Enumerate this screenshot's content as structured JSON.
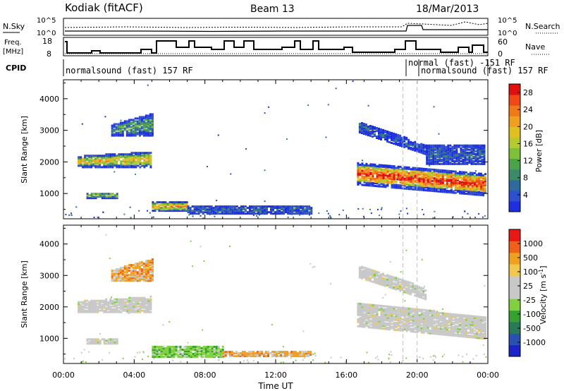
{
  "header": {
    "site": "Kodiak (fitACF)",
    "beam": "Beam 13",
    "date": "18/Mar/2013"
  },
  "meta_panels": {
    "nsky_label": "N.Sky",
    "nsearch_label": "N.Search",
    "noise_ticks": [
      "10^5",
      "10^0"
    ],
    "freq_label": "Freq.",
    "freq_unit": "[MHz]",
    "freq_ticks": [
      "18",
      "8"
    ],
    "nave_label": "Nave",
    "nave_ticks": [
      "60",
      "0"
    ],
    "cpid_label": "CPID",
    "cpid_segments": [
      {
        "text": "normalsound (fast) 157 RF"
      },
      {
        "text": "normal (fast) -151 RF"
      },
      {
        "text": "normalsound (fast) 157 RF"
      }
    ]
  },
  "colors": {
    "power_scale": [
      "#1f2fe0",
      "#2d4fd0",
      "#2f6a9a",
      "#3d8a6a",
      "#4aa24a",
      "#7fc03a",
      "#b8c830",
      "#e0c020",
      "#f0a020",
      "#f07a18",
      "#f04818",
      "#e01010"
    ],
    "velocity_scale": [
      "#1a24c8",
      "#2a50b0",
      "#2a7a58",
      "#36a032",
      "#80d040",
      "#c8c8c8",
      "#c8c8c8",
      "#f0c850",
      "#f0a020",
      "#f06018",
      "#e81818"
    ],
    "grid": "#bdbdbd",
    "dashed_marker": "#c0c0c0"
  },
  "chart_data": [
    {
      "type": "heatmap",
      "name": "power",
      "ylabel": "Slant Range [km]",
      "yticks": [
        1000,
        2000,
        3000,
        4000
      ],
      "ylim": [
        200,
        4600
      ],
      "xlim_hours": [
        0,
        24
      ],
      "colorbar_label": "Power [dB]",
      "colorbar_ticks": [
        4,
        8,
        12,
        16,
        20,
        24,
        28
      ],
      "colorbar_range": [
        0,
        30
      ],
      "bands": [
        {
          "t0": 0.8,
          "t1": 5.0,
          "r0": 1800,
          "r1": 2150,
          "r1_end": 2300,
          "level": 0.45
        },
        {
          "t0": 2.7,
          "t1": 5.0,
          "r0": 2800,
          "r1": 3150,
          "r1_end": 3500,
          "level": 0.25
        },
        {
          "t0": 1.3,
          "t1": 3.0,
          "r0": 820,
          "r1": 1000,
          "level": 0.3
        },
        {
          "t0": 5.0,
          "t1": 7.0,
          "r0": 420,
          "r1": 700,
          "level": 0.5
        },
        {
          "t0": 7.0,
          "t1": 14.0,
          "r0": 330,
          "r1": 560,
          "level": 0.1
        },
        {
          "t0": 16.6,
          "t1": 23.9,
          "r0": 1250,
          "r1": 1950,
          "r0_end": 900,
          "r1_end": 1600,
          "level": 0.65
        },
        {
          "t0": 16.7,
          "t1": 20.5,
          "r0": 2900,
          "r1": 3250,
          "r0_end": 2200,
          "r1_end": 2500,
          "level": 0.1
        },
        {
          "t0": 20.5,
          "t1": 23.8,
          "r0": 1900,
          "r1": 2500,
          "level": 0.1
        }
      ]
    },
    {
      "type": "heatmap",
      "name": "velocity",
      "ylabel": "Slant Range [km]",
      "yticks": [
        1000,
        2000,
        3000,
        4000
      ],
      "ylim": [
        200,
        4600
      ],
      "xlim_hours": [
        0,
        24
      ],
      "xlabel": "Time UT",
      "xticks": [
        "00:00",
        "04:00",
        "08:00",
        "12:00",
        "16:00",
        "20:00",
        "00:00"
      ],
      "colorbar_label": "Velocity [m s",
      "colorbar_label_sup": "-1",
      "colorbar_label_end": "]",
      "colorbar_ticks": [
        1000,
        500,
        100,
        25,
        -25,
        -100,
        -500,
        -1000
      ],
      "bands": [
        {
          "t0": 0.8,
          "t1": 5.0,
          "r0": 1800,
          "r1": 2150,
          "r1_end": 2300,
          "kind": "neutral"
        },
        {
          "t0": 2.7,
          "t1": 5.0,
          "r0": 2800,
          "r1": 3150,
          "r1_end": 3500,
          "kind": "away"
        },
        {
          "t0": 1.3,
          "t1": 3.0,
          "r0": 800,
          "r1": 980,
          "kind": "neutral"
        },
        {
          "t0": 5.0,
          "t1": 9.0,
          "r0": 380,
          "r1": 700,
          "kind": "toward"
        },
        {
          "t0": 9.0,
          "t1": 14.0,
          "r0": 400,
          "r1": 560,
          "kind": "away"
        },
        {
          "t0": 16.6,
          "t1": 23.9,
          "r0": 1350,
          "r1": 2100,
          "r0_end": 950,
          "r1_end": 1650,
          "kind": "neutral"
        },
        {
          "t0": 16.7,
          "t1": 20.5,
          "r0": 2900,
          "r1": 3300,
          "r0_end": 2200,
          "r1_end": 2550,
          "kind": "neutral"
        }
      ]
    }
  ],
  "time_markers_hours": [
    19.2,
    20.0
  ]
}
